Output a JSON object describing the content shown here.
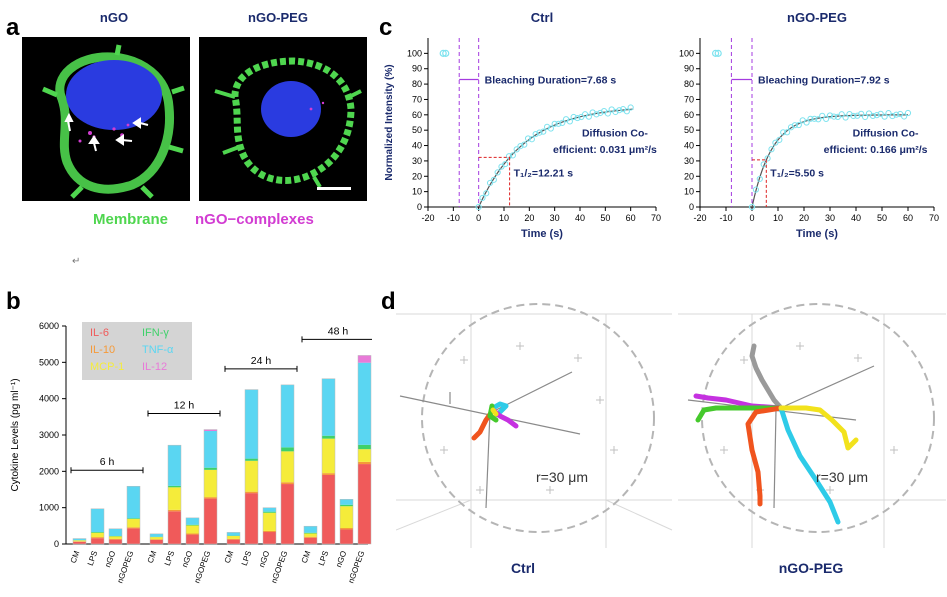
{
  "panels": {
    "a": {
      "letter": "a",
      "title_left": "nGO",
      "title_right": "nGO-PEG",
      "legend_membrane": "Membrane",
      "legend_complexes": "nGO−complexes",
      "colors": {
        "membrane": "#4fd64f",
        "complexes": "#d23cd2",
        "nucleus": "#2a3be0"
      }
    },
    "c": {
      "letter": "c"
    },
    "b": {
      "letter": "b",
      "stray_glyph": "↵"
    },
    "d": {
      "letter": "d",
      "left_label": "Ctrl",
      "right_label": "nGO-PEG",
      "radius_left": "r=30 μm",
      "radius_right": "r=30 μm",
      "track_colors": [
        "#f0541e",
        "#2ecbe8",
        "#f2e21c",
        "#45c92c",
        "#c531e0",
        "#9a9a9a"
      ]
    }
  },
  "chart_data": [
    {
      "type": "scatter",
      "title": "Ctrl",
      "xlabel": "Time (s)",
      "ylabel": "Normalized Intensity (%)",
      "xlim": [
        -20,
        70
      ],
      "ylim": [
        0,
        110
      ],
      "xticks": [
        -20,
        -10,
        0,
        10,
        20,
        30,
        40,
        50,
        60,
        70
      ],
      "yticks": [
        0,
        10,
        20,
        30,
        40,
        50,
        60,
        70,
        80,
        90,
        100
      ],
      "pre_bleach": {
        "x": [
          -14,
          -13
        ],
        "y": [
          100,
          100
        ]
      },
      "recovery": {
        "t_end": 61,
        "plateau": 66,
        "rate": 0.055,
        "t_half_fit": 12.21
      },
      "annotations": {
        "bleach_label": "Bleaching Duration=7.68 s",
        "diffusion_line1": "Diffusion Co-",
        "diffusion_line2": "efficient: 0.031 μm²/s",
        "thalf": "T₁/₂=12.21 s"
      },
      "bleach_window": [
        -7.68,
        0
      ],
      "marker_color": "#7fe3ef"
    },
    {
      "type": "scatter",
      "title": "nGO-PEG",
      "xlabel": "Time (s)",
      "ylabel": "",
      "xlim": [
        -20,
        70
      ],
      "ylim": [
        0,
        110
      ],
      "xticks": [
        -20,
        -10,
        0,
        10,
        20,
        30,
        40,
        50,
        60,
        70
      ],
      "yticks": [
        0,
        10,
        20,
        30,
        40,
        50,
        60,
        70,
        80,
        90,
        100
      ],
      "pre_bleach": {
        "x": [
          -14,
          -13
        ],
        "y": [
          100,
          100
        ]
      },
      "recovery": {
        "t_end": 60,
        "plateau": 60,
        "rate": 0.13,
        "t_half_fit": 5.5
      },
      "annotations": {
        "bleach_label": "Bleaching Duration=7.92 s",
        "diffusion_line1": "Diffusion Co-",
        "diffusion_line2": "efficient: 0.166 μm²/s",
        "thalf": "T₁/₂=5.50 s"
      },
      "bleach_window": [
        -7.92,
        0
      ],
      "marker_color": "#7fe3ef"
    },
    {
      "type": "bar",
      "stacked": true,
      "ylabel": "Cytokine Levels (pg ml⁻¹)",
      "ylim": [
        0,
        6000
      ],
      "yticks": [
        0,
        1000,
        2000,
        3000,
        4000,
        5000,
        6000
      ],
      "categories": [
        "CM",
        "LPS",
        "nGO",
        "nGOPEG"
      ],
      "groups": [
        "6 h",
        "12 h",
        "24 h",
        "48 h"
      ],
      "series": [
        {
          "name": "IL-6",
          "color": "#f05a5a",
          "values": [
            [
              60,
              160,
              120,
              430
            ],
            [
              110,
              900,
              260,
              1250
            ],
            [
              120,
              1400,
              330,
              1650
            ],
            [
              170,
              1900,
              400,
              2200
            ]
          ]
        },
        {
          "name": "IL-10",
          "color": "#f59a38",
          "values": [
            [
              15,
              30,
              20,
              30
            ],
            [
              20,
              40,
              30,
              40
            ],
            [
              20,
              40,
              30,
              50
            ],
            [
              30,
              50,
              40,
              60
            ]
          ]
        },
        {
          "name": "MCP-1",
          "color": "#f5ec3a",
          "values": [
            [
              25,
              120,
              70,
              230
            ],
            [
              60,
              620,
              220,
              750
            ],
            [
              80,
              850,
              500,
              850
            ],
            [
              90,
              950,
              600,
              350
            ]
          ]
        },
        {
          "name": "IFN-γ",
          "color": "#3ed16a",
          "values": [
            [
              5,
              20,
              10,
              20
            ],
            [
              10,
              40,
              20,
              60
            ],
            [
              10,
              60,
              30,
              110
            ],
            [
              20,
              80,
              40,
              120
            ]
          ]
        },
        {
          "name": "TNF-α",
          "color": "#5ad6f2",
          "values": [
            [
              45,
              640,
              200,
              880
            ],
            [
              80,
              1120,
              190,
              1010
            ],
            [
              90,
              1900,
              110,
              1720
            ],
            [
              180,
              1570,
              150,
              2260
            ]
          ]
        },
        {
          "name": "IL-12",
          "color": "#e87ad8",
          "values": [
            [
              0,
              0,
              0,
              0
            ],
            [
              0,
              0,
              0,
              40
            ],
            [
              0,
              0,
              0,
              0
            ],
            [
              0,
              0,
              0,
              200
            ]
          ]
        }
      ],
      "legend_order": [
        "IL-6",
        "IFN-γ",
        "IL-10",
        "TNF-α",
        "MCP-1",
        "IL-12"
      ],
      "legend_placement": "top-left"
    }
  ]
}
